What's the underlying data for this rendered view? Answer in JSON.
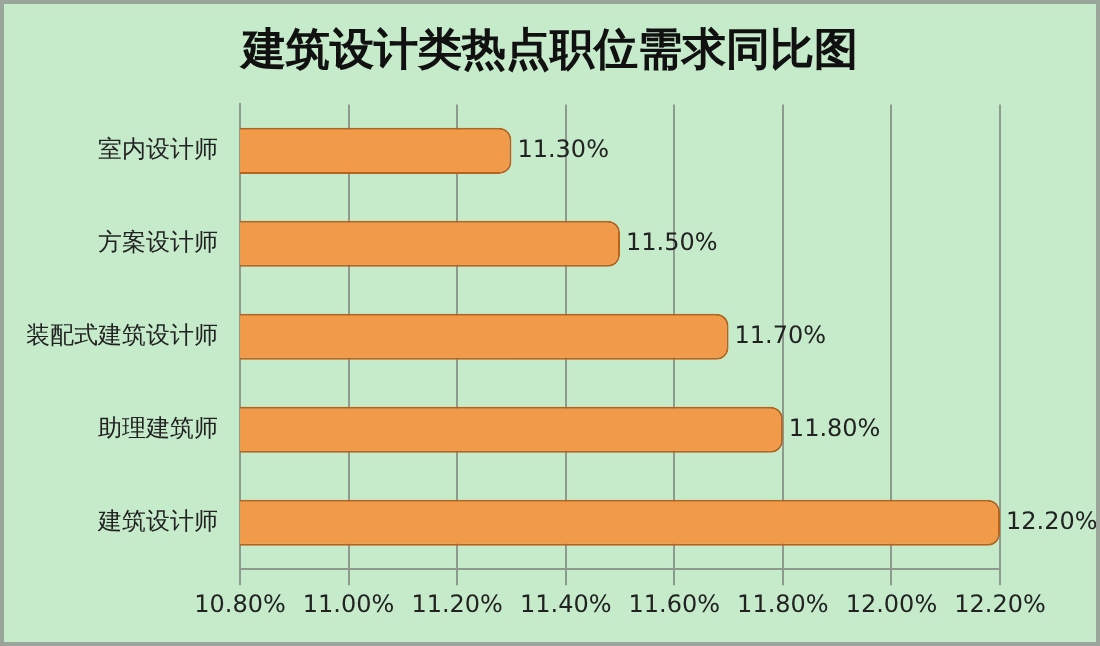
{
  "chart_data": {
    "type": "bar",
    "orientation": "horizontal",
    "title": "建筑设计类热点职位需求同比图",
    "categories": [
      "室内设计师",
      "方案设计师",
      "装配式建筑设计师",
      "助理建筑师",
      "建筑设计师"
    ],
    "values": [
      11.3,
      11.5,
      11.7,
      11.8,
      12.2
    ],
    "value_labels": [
      "11.30%",
      "11.50%",
      "11.70%",
      "11.80%",
      "12.20%"
    ],
    "color": "#f09a4a",
    "xlim": [
      10.8,
      12.2
    ],
    "xticks": [
      {
        "value": 10.8,
        "label": "10.80%"
      },
      {
        "value": 11.0,
        "label": "11.00%"
      },
      {
        "value": 11.2,
        "label": "11.20%"
      },
      {
        "value": 11.4,
        "label": "11.40%"
      },
      {
        "value": 11.6,
        "label": "11.60%"
      },
      {
        "value": 11.8,
        "label": "11.80%"
      },
      {
        "value": 12.0,
        "label": "12.00%"
      },
      {
        "value": 12.2,
        "label": "12.20%"
      }
    ],
    "grid": "x"
  }
}
